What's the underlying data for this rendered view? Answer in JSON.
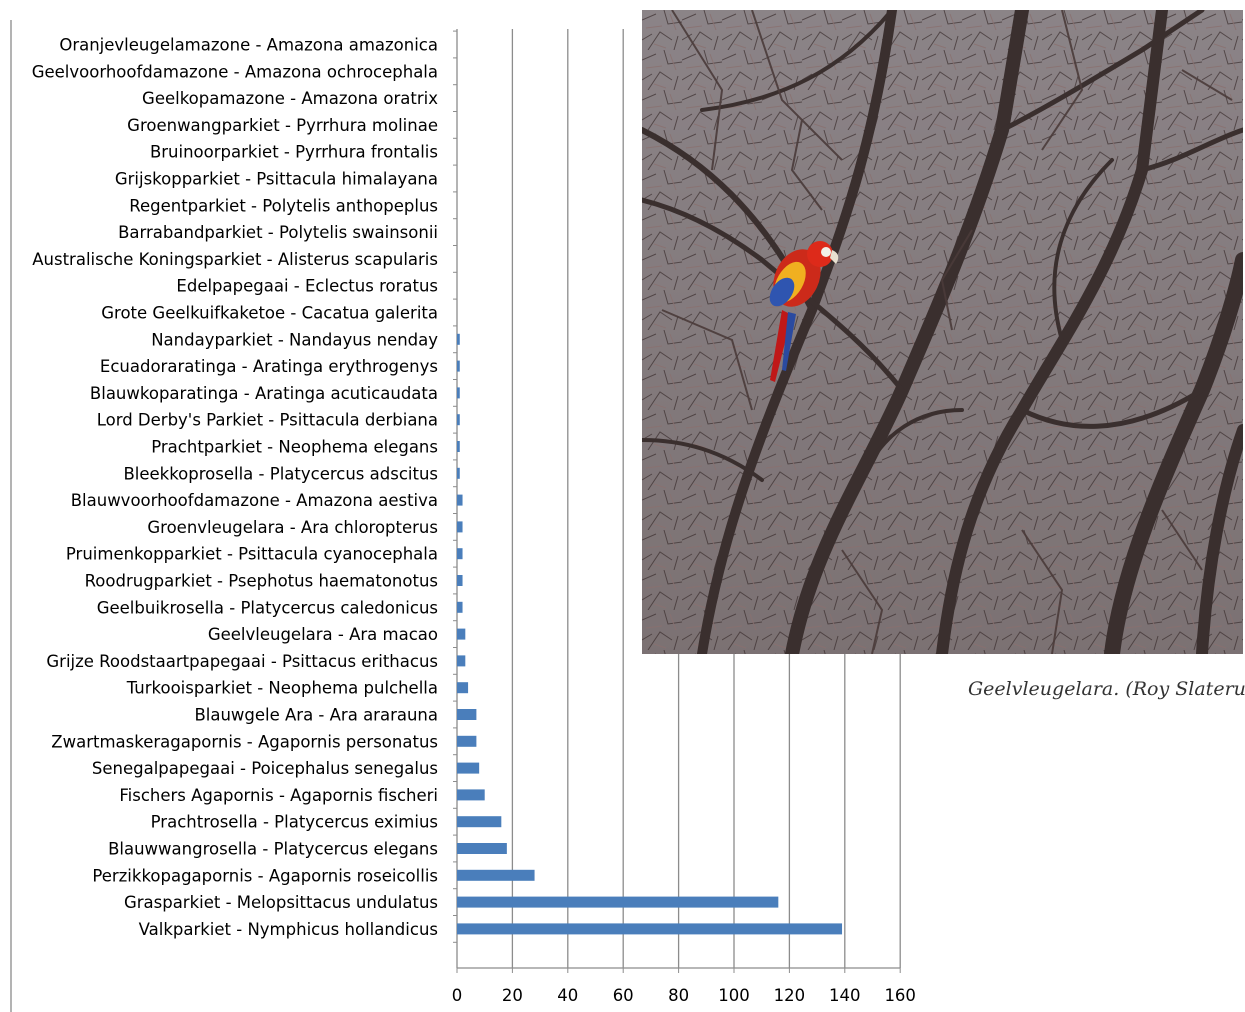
{
  "chart_data": {
    "type": "bar",
    "orientation": "horizontal",
    "categories": [
      "Oranjevleugelamazone - Amazona amazonica",
      "Geelvoorhoofdamazone - Amazona ochrocephala",
      "Geelkopamazone - Amazona oratrix",
      "Groenwangparkiet - Pyrrhura molinae",
      "Bruinoorparkiet - Pyrrhura frontalis",
      "Grijskopparkiet - Psittacula himalayana",
      "Regentparkiet  - Polytelis anthopeplus",
      "Barrabandparkiet - Polytelis swainsonii",
      "Australische Koningsparkiet - Alisterus scapularis",
      "Edelpapegaai - Eclectus roratus",
      "Grote Geelkuifkaketoe - Cacatua galerita",
      "Nandayparkiet - Nandayus nenday",
      "Ecuadoraratinga - Aratinga erythrogenys",
      "Blauwkoparatinga - Aratinga acuticaudata",
      "Lord Derby's Parkiet - Psittacula derbiana",
      "Prachtparkiet - Neophema elegans",
      "Bleekkoprosella - Platycercus adscitus",
      "Blauwvoorhoofdamazone - Amazona aestiva",
      "Groenvleugelara - Ara chloropterus",
      "Pruimenkopparkiet - Psittacula cyanocephala",
      "Roodrugparkiet - Psephotus haematonotus",
      "Geelbuikrosella - Platycercus caledonicus",
      "Geelvleugelara - Ara macao",
      "Grijze Roodstaartpapegaai - Psittacus erithacus",
      "Turkooisparkiet - Neophema pulchella",
      "Blauwgele Ara - Ara ararauna",
      "Zwartmaskeragapornis - Agapornis personatus",
      "Senegalpapegaai - Poicephalus senegalus",
      "Fischers Agapornis - Agapornis fischeri",
      "Prachtrosella - Platycercus eximius",
      "Blauwwangrosella - Platycercus elegans",
      "Perzikkopagapornis - Agapornis roseicollis",
      "Grasparkiet - Melopsittacus undulatus",
      "Valkparkiet - Nymphicus hollandicus"
    ],
    "values": [
      0,
      0,
      0,
      0,
      0,
      0,
      0,
      0,
      0,
      0,
      0,
      1,
      1,
      1,
      1,
      1,
      1,
      2,
      2,
      2,
      2,
      2,
      3,
      3,
      4,
      7,
      7,
      8,
      10,
      16,
      18,
      28,
      116,
      139
    ],
    "xlim": [
      0,
      160
    ],
    "xticks": [
      "0",
      "20",
      "40",
      "60",
      "80",
      "100",
      "120",
      "140",
      "160"
    ],
    "grid": "vertical",
    "legend": "none",
    "bar_color": "#4a7ebb",
    "gridline_color": "#8c8c8c",
    "text_color": "#000000"
  },
  "photo": {
    "caption": "Geelvleugelara. (Roy Slaterus)"
  }
}
